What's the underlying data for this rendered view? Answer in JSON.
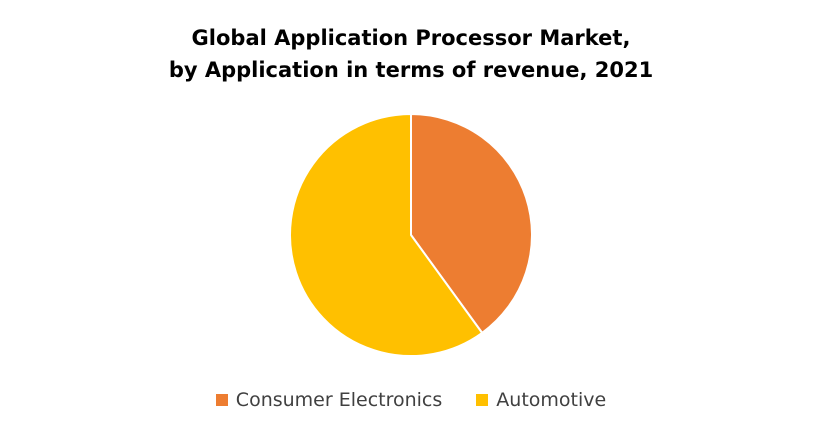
{
  "chart_data": {
    "type": "pie",
    "title_lines": [
      "Global Application Processor Market,",
      "by Application in terms of revenue, 2021"
    ],
    "categories": [
      "Consumer Electronics",
      "Automotive"
    ],
    "values": [
      40,
      60
    ],
    "colors": [
      "#ED7D31",
      "#FFC000"
    ],
    "start_angle_deg": 0,
    "direction": "clockwise",
    "legend_position": "bottom",
    "data_labels": false
  }
}
